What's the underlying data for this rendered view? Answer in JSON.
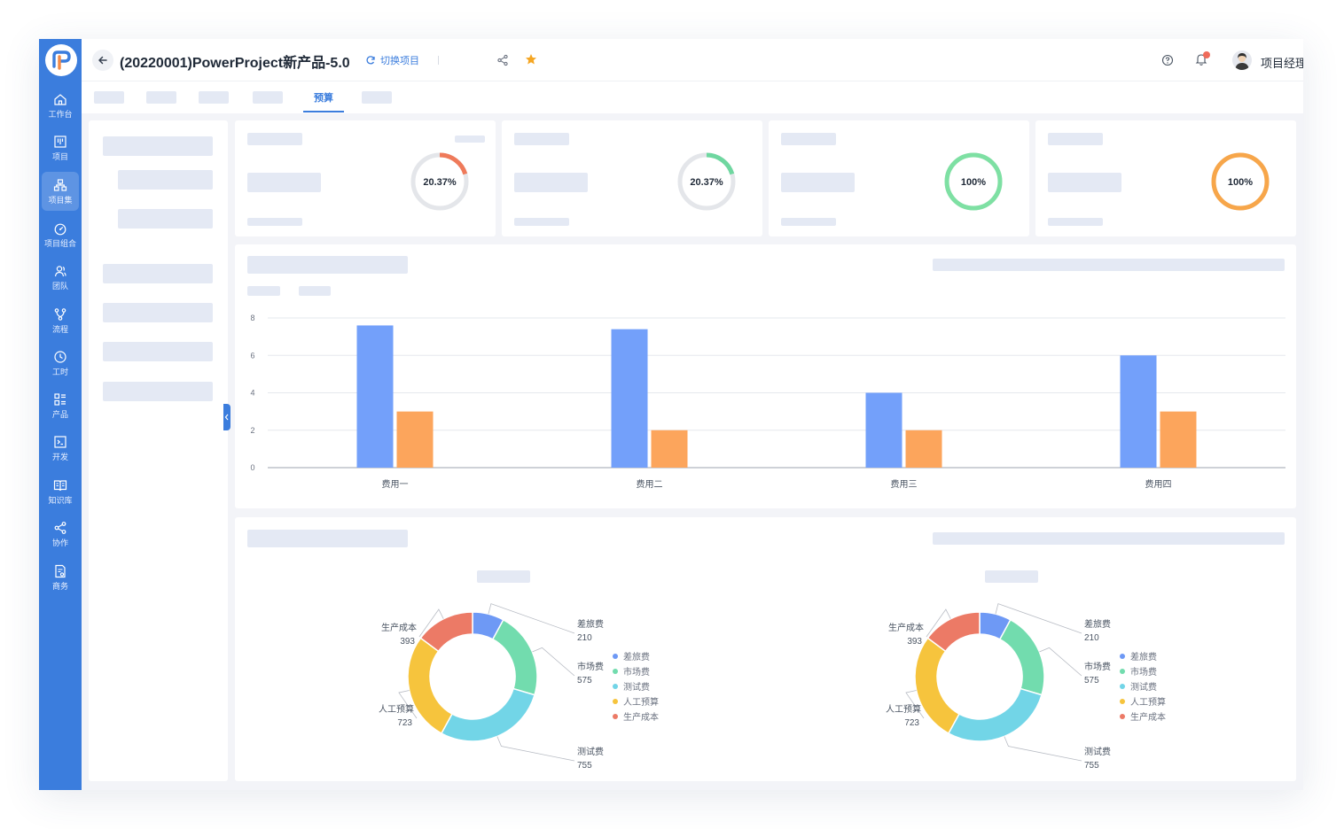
{
  "header": {
    "project_title": "(20220001)PowerProject新产品-5.0",
    "switch_label": "切换项目",
    "user_name": "项目经理 PM"
  },
  "sidebar": {
    "items": [
      {
        "label": "工作台",
        "icon": "home-icon"
      },
      {
        "label": "项目",
        "icon": "kanban-icon"
      },
      {
        "label": "项目集",
        "icon": "hierarchy-icon",
        "active": true
      },
      {
        "label": "项目组合",
        "icon": "dashboard-icon"
      },
      {
        "label": "团队",
        "icon": "team-icon"
      },
      {
        "label": "流程",
        "icon": "flow-icon"
      },
      {
        "label": "工时",
        "icon": "clock-icon"
      },
      {
        "label": "产品",
        "icon": "product-icon"
      },
      {
        "label": "开发",
        "icon": "terminal-icon"
      },
      {
        "label": "知识库",
        "icon": "book-icon"
      },
      {
        "label": "协作",
        "icon": "share-icon"
      },
      {
        "label": "商务",
        "icon": "document-icon"
      }
    ]
  },
  "tabs": {
    "active_label": "预算"
  },
  "kpis": [
    {
      "value_label": "20.37%",
      "percent": 20.37,
      "color": "#ef7a5a"
    },
    {
      "value_label": "20.37%",
      "percent": 20.37,
      "color": "#6fd7a0"
    },
    {
      "value_label": "100%",
      "percent": 100,
      "color": "#7ee0a3"
    },
    {
      "value_label": "100%",
      "percent": 100,
      "color": "#f7a64a"
    }
  ],
  "colors": {
    "accent": "#3b7ddd",
    "bar_blue": "#73a0fa",
    "bar_orange": "#fca55c"
  },
  "chart_data": [
    {
      "type": "bar",
      "categories": [
        "费用一",
        "费用二",
        "费用三",
        "费用四"
      ],
      "series": [
        {
          "values": [
            7.6,
            7.4,
            4,
            6
          ],
          "color": "#73a0fa"
        },
        {
          "values": [
            3,
            2,
            2,
            3
          ],
          "color": "#fca55c"
        }
      ],
      "yticks": [
        "0",
        "2",
        "4",
        "6",
        "8"
      ],
      "ylim": [
        0,
        8
      ],
      "grid": true
    },
    {
      "type": "pie",
      "donut": true,
      "slices": [
        {
          "label": "差旅费",
          "value": 210,
          "color": "#6e99f5"
        },
        {
          "label": "市场费",
          "value": 575,
          "color": "#72dcae"
        },
        {
          "label": "测试费",
          "value": 755,
          "color": "#72d5e7"
        },
        {
          "label": "人工预算",
          "value": 723,
          "color": "#f6c43d"
        },
        {
          "label": "生产成本",
          "value": 393,
          "color": "#ec7a66"
        }
      ],
      "legend_position": "right"
    },
    {
      "type": "pie",
      "donut": true,
      "slices": [
        {
          "label": "差旅费",
          "value": 210,
          "color": "#6e99f5"
        },
        {
          "label": "市场费",
          "value": 575,
          "color": "#72dcae"
        },
        {
          "label": "测试费",
          "value": 755,
          "color": "#72d5e7"
        },
        {
          "label": "人工预算",
          "value": 723,
          "color": "#f6c43d"
        },
        {
          "label": "生产成本",
          "value": 393,
          "color": "#ec7a66"
        }
      ],
      "legend_position": "right"
    }
  ]
}
